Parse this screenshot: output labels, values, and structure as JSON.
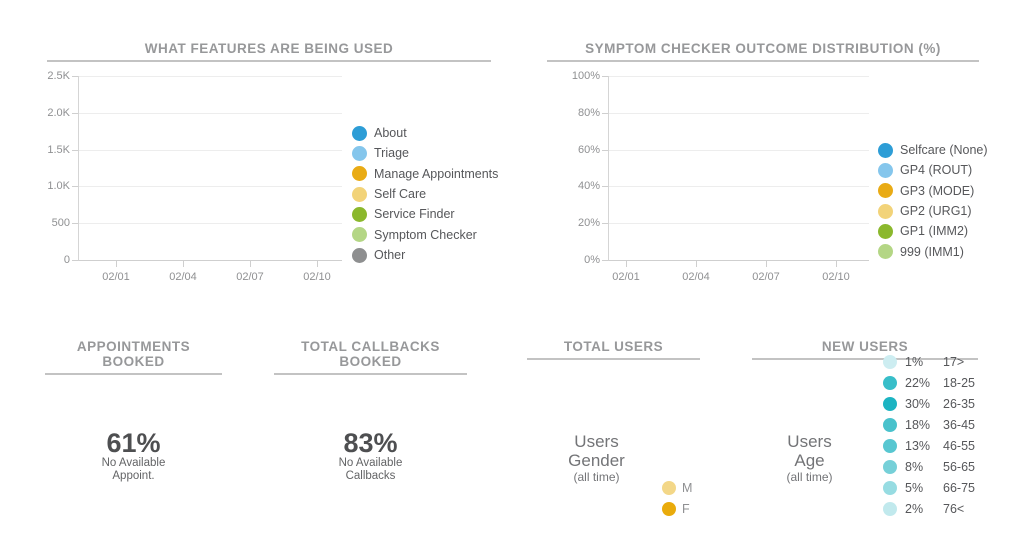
{
  "features_chart": {
    "title": "WHAT FEATURES ARE BEING USED",
    "y_ticks": [
      "2.5K",
      "2.0K",
      "1.5K",
      "1.0K",
      "500",
      "0"
    ],
    "x_ticks": [
      "02/01",
      "02/04",
      "02/07",
      "02/10"
    ],
    "legend": [
      {
        "label": "About",
        "color": "#2d9dd6"
      },
      {
        "label": "Triage",
        "color": "#85c6ec"
      },
      {
        "label": "Manage Appointments",
        "color": "#e9ab15"
      },
      {
        "label": "Self Care",
        "color": "#f2d379"
      },
      {
        "label": "Service Finder",
        "color": "#8bb82d"
      },
      {
        "label": "Symptom Checker",
        "color": "#b4d685"
      },
      {
        "label": "Other",
        "color": "#8e8f90"
      }
    ]
  },
  "symptom_chart": {
    "title": "SYMPTOM CHECKER OUTCOME DISTRIBUTION (%)",
    "y_ticks": [
      "100%",
      "80%",
      "60%",
      "40%",
      "20%",
      "0%"
    ],
    "x_ticks": [
      "02/01",
      "02/04",
      "02/07",
      "02/10"
    ],
    "legend": [
      {
        "label": "Selfcare (None)",
        "color": "#2d9dd6"
      },
      {
        "label": "GP4 (ROUT)",
        "color": "#85c6ec"
      },
      {
        "label": "GP3 (MODE)",
        "color": "#e9ab15"
      },
      {
        "label": "GP2 (URG1)",
        "color": "#f2d379"
      },
      {
        "label": "GP1 (IMM2)",
        "color": "#8bb82d"
      },
      {
        "label": "999 (IMM1)",
        "color": "#b4d685"
      }
    ]
  },
  "appointments": {
    "title": "APPOINTMENTS BOOKED",
    "value": "61%",
    "caption_line1": "No Available",
    "caption_line2": "Appoint."
  },
  "callbacks": {
    "title": "TOTAL CALLBACKS BOOKED",
    "value": "83%",
    "caption_line1": "No Available",
    "caption_line2": "Callbacks"
  },
  "total_users": {
    "title": "TOTAL USERS",
    "center_line1": "Users",
    "center_line2": "Gender",
    "center_line3": "(all time)",
    "legend": [
      {
        "label": "M",
        "color": "#f3d788"
      },
      {
        "label": "F",
        "color": "#e9ab0c"
      }
    ]
  },
  "new_users": {
    "title": "NEW USERS",
    "center_line1": "Users",
    "center_line2": "Age",
    "center_line3": "(all time)",
    "legend": [
      {
        "pct": "1%",
        "range": "17>",
        "color": "#cdedf1"
      },
      {
        "pct": "22%",
        "range": "18-25",
        "color": "#38bec9"
      },
      {
        "pct": "30%",
        "range": "26-35",
        "color": "#1cb4c2"
      },
      {
        "pct": "18%",
        "range": "36-45",
        "color": "#49c2cc"
      },
      {
        "pct": "13%",
        "range": "46-55",
        "color": "#58c7d1"
      },
      {
        "pct": "8%",
        "range": "56-65",
        "color": "#76d0d8"
      },
      {
        "pct": "5%",
        "range": "66-75",
        "color": "#97dce2"
      },
      {
        "pct": "2%",
        "range": "76<",
        "color": "#c1e9ed"
      }
    ]
  },
  "chart_data": [
    {
      "type": "line",
      "title": "WHAT FEATURES ARE BEING USED",
      "x": [
        "02/01",
        "02/04",
        "02/07",
        "02/10"
      ],
      "y_tick_labels": [
        "0",
        "500",
        "1.0K",
        "1.5K",
        "2.0K",
        "2.5K"
      ],
      "ylim": [
        0,
        2500
      ],
      "grid": true,
      "legend_position": "right",
      "series": [
        {
          "name": "About",
          "values": []
        },
        {
          "name": "Triage",
          "values": []
        },
        {
          "name": "Manage Appointments",
          "values": []
        },
        {
          "name": "Self Care",
          "values": []
        },
        {
          "name": "Service Finder",
          "values": []
        },
        {
          "name": "Symptom Checker",
          "values": []
        },
        {
          "name": "Other",
          "values": []
        }
      ]
    },
    {
      "type": "line",
      "title": "SYMPTOM CHECKER OUTCOME DISTRIBUTION (%)",
      "x": [
        "02/01",
        "02/04",
        "02/07",
        "02/10"
      ],
      "y_tick_labels": [
        "0%",
        "20%",
        "40%",
        "60%",
        "80%",
        "100%"
      ],
      "ylim": [
        0,
        100
      ],
      "grid": true,
      "legend_position": "right",
      "series": [
        {
          "name": "Selfcare (None)",
          "values": []
        },
        {
          "name": "GP4 (ROUT)",
          "values": []
        },
        {
          "name": "GP3 (MODE)",
          "values": []
        },
        {
          "name": "GP2 (URG1)",
          "values": []
        },
        {
          "name": "GP1 (IMM2)",
          "values": []
        },
        {
          "name": "999 (IMM1)",
          "values": []
        }
      ]
    },
    {
      "type": "stat",
      "title": "APPOINTMENTS BOOKED",
      "value": 61,
      "unit": "%",
      "label": "No Available Appoint."
    },
    {
      "type": "stat",
      "title": "TOTAL CALLBACKS BOOKED",
      "value": 83,
      "unit": "%",
      "label": "No Available Callbacks"
    },
    {
      "type": "pie",
      "title": "TOTAL USERS",
      "subtitle": "Users Gender (all time)",
      "categories": [
        "M",
        "F"
      ],
      "values": []
    },
    {
      "type": "pie",
      "title": "NEW USERS",
      "subtitle": "Users Age (all time)",
      "categories": [
        "17>",
        "18-25",
        "26-35",
        "36-45",
        "46-55",
        "56-65",
        "66-75",
        "76<"
      ],
      "values": [
        1,
        22,
        30,
        18,
        13,
        8,
        5,
        2
      ]
    }
  ]
}
